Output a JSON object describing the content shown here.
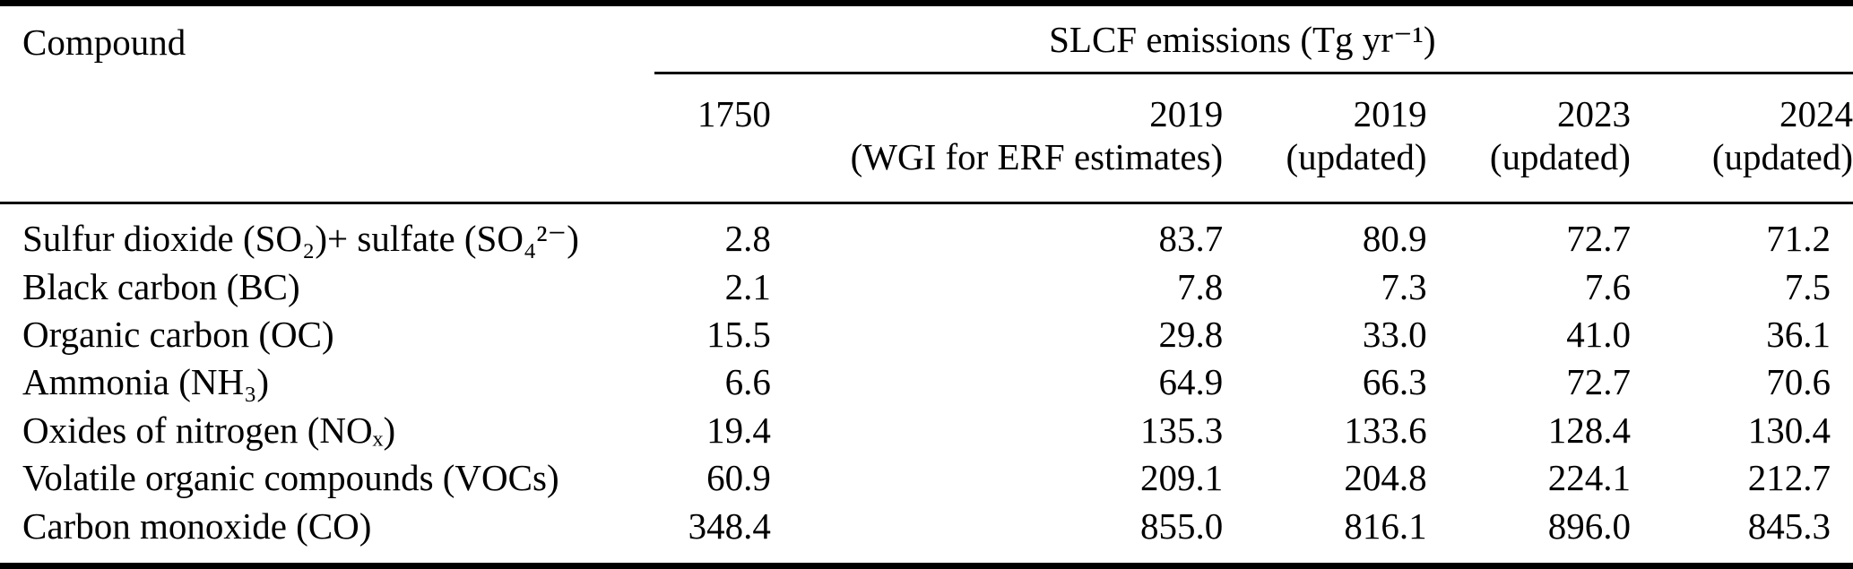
{
  "table": {
    "compound_header": "Compound",
    "group_header": "SLCF emissions (Tg yr⁻¹)",
    "columns": [
      {
        "year": "1750",
        "sublabel": ""
      },
      {
        "year": "2019",
        "sublabel": "(WGI for ERF estimates)"
      },
      {
        "year": "2019",
        "sublabel": "(updated)"
      },
      {
        "year": "2023",
        "sublabel": "(updated)"
      },
      {
        "year": "2024",
        "sublabel": "(updated)"
      }
    ],
    "rows": [
      {
        "compound": "Sulfur dioxide (SO₂)+ sulfate (SO₄²⁻)",
        "values": [
          "2.8",
          "83.7",
          "80.9",
          "72.7",
          "71.2"
        ]
      },
      {
        "compound": "Black carbon (BC)",
        "values": [
          "2.1",
          "7.8",
          "7.3",
          "7.6",
          "7.5"
        ]
      },
      {
        "compound": "Organic carbon (OC)",
        "values": [
          "15.5",
          "29.8",
          "33.0",
          "41.0",
          "36.1"
        ]
      },
      {
        "compound": "Ammonia (NH₃)",
        "values": [
          "6.6",
          "64.9",
          "66.3",
          "72.7",
          "70.6"
        ]
      },
      {
        "compound": "Oxides of nitrogen (NOₓ)",
        "values": [
          "19.4",
          "135.3",
          "133.6",
          "128.4",
          "130.4"
        ]
      },
      {
        "compound": "Volatile organic compounds (VOCs)",
        "values": [
          "60.9",
          "209.1",
          "204.8",
          "224.1",
          "212.7"
        ]
      },
      {
        "compound": "Carbon monoxide (CO)",
        "values": [
          "348.4",
          "855.0",
          "816.1",
          "896.0",
          "845.3"
        ]
      }
    ]
  }
}
